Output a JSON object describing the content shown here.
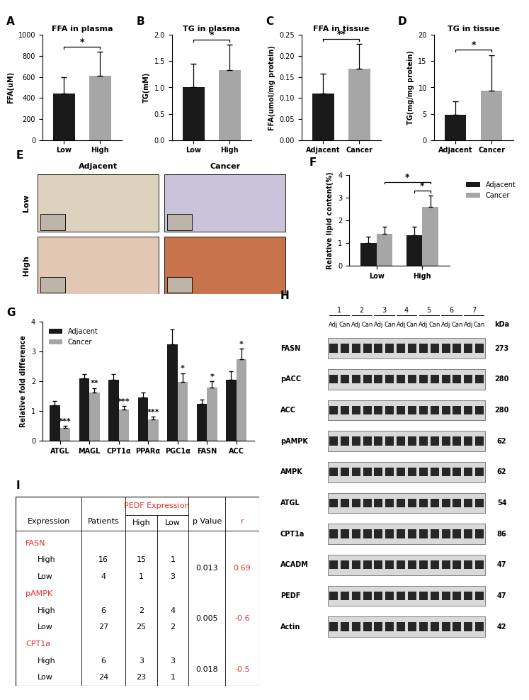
{
  "chart_data": [
    {
      "panel_label": "A",
      "type": "bar",
      "title": "FFA in plasma",
      "y_label": "FFA(uM)",
      "categories": [
        "Low",
        "High"
      ],
      "values": [
        440,
        610
      ],
      "errors": [
        160,
        230
      ],
      "colors": [
        "#1a1a1a",
        "#a6a6a6"
      ],
      "ylim": [
        0,
        1000
      ],
      "yticks": [
        0,
        200,
        400,
        600,
        800,
        1000
      ],
      "annotations": [
        {
          "text": "*",
          "between": [
            "Low",
            "High"
          ]
        }
      ]
    },
    {
      "panel_label": "B",
      "type": "bar",
      "title": "TG in plasma",
      "y_label": "TG(mM)",
      "categories": [
        "Low",
        "High"
      ],
      "values": [
        1.0,
        1.33
      ],
      "errors": [
        0.45,
        0.48
      ],
      "colors": [
        "#1a1a1a",
        "#a6a6a6"
      ],
      "ylim": [
        0,
        2
      ],
      "yticks": [
        {
          "value": 0,
          "label": "0.0"
        },
        0.5,
        {
          "value": 1,
          "label": "1.0"
        },
        1.5,
        {
          "value": 2,
          "label": "2.0"
        }
      ],
      "annotations": [
        {
          "text": "*",
          "between": [
            "Low",
            "High"
          ]
        }
      ]
    },
    {
      "panel_label": "C",
      "type": "bar",
      "title": "FFA in tissue",
      "y_label": "FFA(umol/mg protein)",
      "categories": [
        "Adjacent",
        "Cancer"
      ],
      "values": [
        0.11,
        0.17
      ],
      "errors": [
        0.048,
        0.058
      ],
      "colors": [
        "#1a1a1a",
        "#a6a6a6"
      ],
      "ylim": [
        0,
        0.25
      ],
      "yticks": [
        {
          "value": 0,
          "label": "0.00"
        },
        0.05,
        {
          "value": 0.1,
          "label": "0.10"
        },
        0.15,
        {
          "value": 0.2,
          "label": "0.20"
        },
        0.25
      ],
      "annotations": [
        {
          "text": "**",
          "between": [
            "Adjacent",
            "Cancer"
          ]
        }
      ]
    },
    {
      "panel_label": "D",
      "type": "bar",
      "title": "TG in tissue",
      "y_label": "TG(mg/mg protein)",
      "categories": [
        "Adjacent",
        "Cancer"
      ],
      "values": [
        4.8,
        9.4
      ],
      "errors": [
        2.6,
        6.8
      ],
      "colors": [
        "#1a1a1a",
        "#a6a6a6"
      ],
      "ylim": [
        0,
        20
      ],
      "yticks": [
        0,
        5,
        10,
        15,
        20
      ],
      "annotations": [
        {
          "text": "*",
          "between": [
            "Adjacent",
            "Cancer"
          ]
        }
      ]
    },
    {
      "panel_label": "F",
      "type": "bar",
      "y_label": "Relative lipid content(%)",
      "categories": [
        "Low",
        "High"
      ],
      "series": [
        {
          "name": "Adjacent",
          "color": "#1a1a1a",
          "values": [
            1.0,
            1.35
          ],
          "errors": [
            0.28,
            0.38
          ]
        },
        {
          "name": "Cancer",
          "color": "#a6a6a6",
          "values": [
            1.4,
            2.6
          ],
          "errors": [
            0.32,
            0.5
          ]
        }
      ],
      "ylim": [
        0,
        4
      ],
      "yticks": [
        0,
        1,
        2,
        3,
        4
      ],
      "legend": "upper right",
      "annotations": [
        {
          "text": "*",
          "between": [
            [
              "Adjacent",
              "High"
            ],
            [
              "Cancer",
              "High"
            ]
          ]
        },
        {
          "text": "*",
          "between": [
            [
              "Cancer",
              "Low"
            ],
            [
              "Cancer",
              "High"
            ]
          ]
        }
      ]
    },
    {
      "panel_label": "G",
      "type": "bar",
      "y_label": "Relative fold difference",
      "categories": [
        "ATGL",
        "MAGL",
        "CPT1α",
        "PPARα",
        "PGC1α",
        "FASN",
        "ACC"
      ],
      "series": [
        {
          "name": "Adjacent",
          "color": "#1a1a1a",
          "values": [
            1.2,
            2.1,
            2.05,
            1.47,
            3.25,
            1.25,
            2.05
          ],
          "errors": [
            0.15,
            0.15,
            0.2,
            0.15,
            0.5,
            0.15,
            0.3
          ]
        },
        {
          "name": "Cancer",
          "color": "#a6a6a6",
          "values": [
            0.45,
            1.63,
            1.07,
            0.73,
            1.98,
            1.8,
            2.75
          ],
          "errors": [
            0.05,
            0.15,
            0.1,
            0.08,
            0.3,
            0.2,
            0.35
          ]
        }
      ],
      "ylim": [
        0,
        4
      ],
      "yticks": [
        0,
        1,
        2,
        3,
        4
      ],
      "legend": "upper left",
      "annotations": [
        {
          "text": "***",
          "at": [
            "Cancer",
            "ATGL"
          ]
        },
        {
          "text": "**",
          "at": [
            "Cancer",
            "MAGL"
          ]
        },
        {
          "text": "***",
          "at": [
            "Cancer",
            "CPT1α"
          ]
        },
        {
          "text": "***",
          "at": [
            "Cancer",
            "PPARα"
          ]
        },
        {
          "text": "*",
          "at": [
            "Cancer",
            "PGC1α"
          ]
        },
        {
          "text": "*",
          "at": [
            "Cancer",
            "FASN"
          ]
        },
        {
          "text": "*",
          "at": [
            "Cancer",
            "ACC"
          ]
        }
      ]
    }
  ],
  "image_panel": {
    "panel_label": "E",
    "columns": [
      "Adjacent",
      "Cancer"
    ],
    "rows": [
      "Low",
      "High"
    ]
  },
  "blot": {
    "panel_label": "H",
    "lanes": [
      "1",
      "2",
      "3",
      "4",
      "5",
      "6",
      "7"
    ],
    "lane_groups": [
      "Adj",
      "Can"
    ],
    "unit": "kDa",
    "rows": [
      {
        "name": "FASN",
        "kda": 273
      },
      {
        "name": "pACC",
        "kda": 280
      },
      {
        "name": "ACC",
        "kda": 280
      },
      {
        "name": "pAMPK",
        "kda": 62
      },
      {
        "name": "AMPK",
        "kda": 62
      },
      {
        "name": "ATGL",
        "kda": 54
      },
      {
        "name": "CPT1a",
        "kda": 86
      },
      {
        "name": "ACADM",
        "kda": 47
      },
      {
        "name": "PEDF",
        "kda": 47
      },
      {
        "name": "Actin",
        "kda": 42
      }
    ]
  },
  "table": {
    "panel_label": "I",
    "header": [
      "Expression",
      "Patients",
      "PEDF Expression",
      "p Value",
      "r"
    ],
    "subheader": [
      "High",
      "Low"
    ],
    "groups": [
      {
        "name": "FASN",
        "p_value": 0.013,
        "r": 0.69,
        "rows": [
          {
            "level": "High",
            "patients": 16,
            "pedf_high": 15,
            "pedf_low": 1
          },
          {
            "level": "Low",
            "patients": 4,
            "pedf_high": 1,
            "pedf_low": 3
          }
        ]
      },
      {
        "name": "pAMPK",
        "p_value": 0.005,
        "r": -0.6,
        "rows": [
          {
            "level": "High",
            "patients": 6,
            "pedf_high": 2,
            "pedf_low": 4
          },
          {
            "level": "Low",
            "patients": 27,
            "pedf_high": 25,
            "pedf_low": 2
          }
        ]
      },
      {
        "name": "CPT1a",
        "p_value": 0.018,
        "r": -0.5,
        "rows": [
          {
            "level": "High",
            "patients": 6,
            "pedf_high": 3,
            "pedf_low": 3
          },
          {
            "level": "Low",
            "patients": 24,
            "pedf_high": 23,
            "pedf_low": 1
          }
        ]
      }
    ]
  }
}
